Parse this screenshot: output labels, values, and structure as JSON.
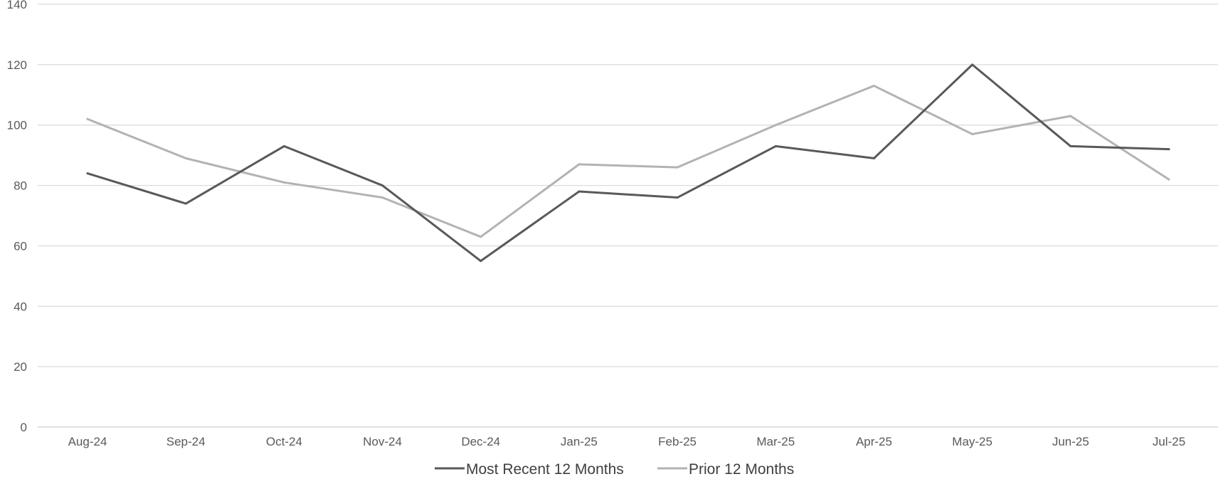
{
  "chart_data": {
    "type": "line",
    "categories": [
      "Aug-24",
      "Sep-24",
      "Oct-24",
      "Nov-24",
      "Dec-24",
      "Jan-25",
      "Feb-25",
      "Mar-25",
      "Apr-25",
      "May-25",
      "Jun-25",
      "Jul-25"
    ],
    "series": [
      {
        "name": "Most Recent 12 Months",
        "color": "#595959",
        "values": [
          84,
          74,
          93,
          80,
          55,
          78,
          76,
          93,
          89,
          120,
          93,
          92
        ]
      },
      {
        "name": "Prior 12 Months",
        "color": "#b3b3b3",
        "values": [
          102,
          89,
          81,
          76,
          63,
          87,
          86,
          100,
          113,
          97,
          103,
          82
        ]
      }
    ],
    "title": "",
    "xlabel": "",
    "ylabel": "",
    "ylim": [
      0,
      140
    ],
    "yticks": [
      "0",
      "20",
      "40",
      "60",
      "80",
      "100",
      "120",
      "140"
    ],
    "grid": true,
    "legend_position": "bottom",
    "gridline_color": "#d9d9d9"
  }
}
